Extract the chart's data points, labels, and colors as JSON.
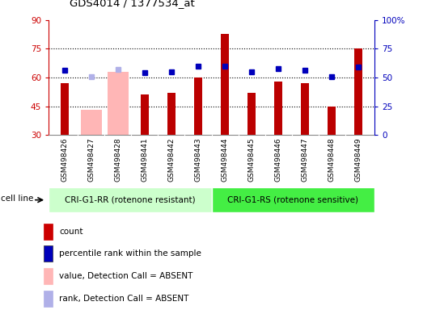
{
  "title": "GDS4014 / 1377534_at",
  "samples": [
    "GSM498426",
    "GSM498427",
    "GSM498428",
    "GSM498441",
    "GSM498442",
    "GSM498443",
    "GSM498444",
    "GSM498445",
    "GSM498446",
    "GSM498447",
    "GSM498448",
    "GSM498449"
  ],
  "counts": [
    57,
    0,
    0,
    51,
    52,
    60,
    83,
    52,
    58,
    57,
    45,
    75
  ],
  "ranks": [
    56,
    0,
    0,
    54,
    55,
    60,
    60,
    55,
    58,
    56,
    51,
    59
  ],
  "absent_counts": [
    0,
    43,
    63,
    0,
    0,
    0,
    0,
    0,
    0,
    0,
    0,
    0
  ],
  "absent_ranks": [
    0,
    51,
    57,
    0,
    0,
    0,
    0,
    0,
    0,
    0,
    0,
    0
  ],
  "is_absent": [
    false,
    true,
    true,
    false,
    false,
    false,
    false,
    false,
    false,
    false,
    false,
    false
  ],
  "ylim_left": [
    30,
    90
  ],
  "ylim_right": [
    0,
    100
  ],
  "yticks_left": [
    30,
    45,
    60,
    75,
    90
  ],
  "yticks_right": [
    0,
    25,
    50,
    75,
    100
  ],
  "group1_label": "CRI-G1-RR (rotenone resistant)",
  "group2_label": "CRI-G1-RS (rotenone sensitive)",
  "cell_line_label": "cell line",
  "legend_items": [
    {
      "label": "count",
      "color": "#cc0000"
    },
    {
      "label": "percentile rank within the sample",
      "color": "#0000bb"
    },
    {
      "label": "value, Detection Call = ABSENT",
      "color": "#ffb6b6"
    },
    {
      "label": "rank, Detection Call = ABSENT",
      "color": "#b0b0e8"
    }
  ],
  "group1_color": "#ccffcc",
  "group2_color": "#44ee44",
  "count_color": "#bb0000",
  "rank_color": "#0000bb",
  "absent_count_color": "#ffb6b6",
  "absent_rank_color": "#b0b0e8",
  "ylabel_left_color": "#cc0000",
  "ylabel_right_color": "#0000bb",
  "bg_color": "#d8d8d8"
}
